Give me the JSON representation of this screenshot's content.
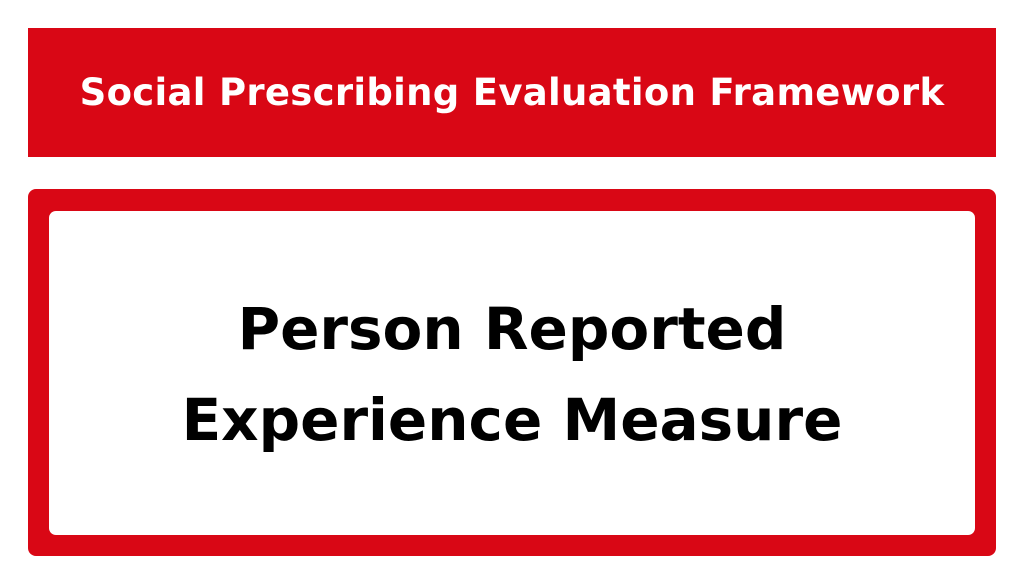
{
  "header": {
    "title": "Social Prescribing Evaluation Framework"
  },
  "main": {
    "title_lines": [
      "Person Reported",
      "Experience Measure"
    ]
  },
  "colors": {
    "accent": "#d90715",
    "background": "#ffffff",
    "text": "#000000"
  }
}
